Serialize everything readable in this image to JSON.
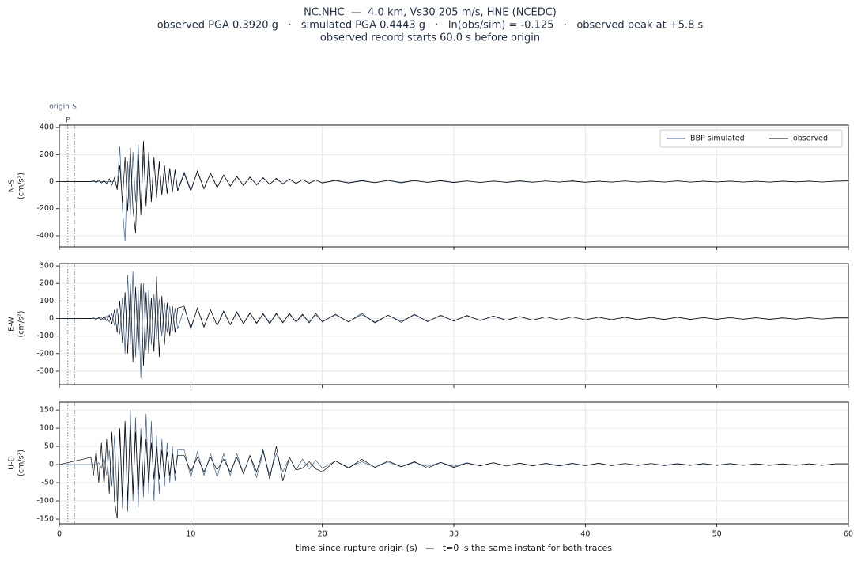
{
  "suptitle": [
    "NC.NHC  —  4.0 km, Vs30 205 m/s, HNE (NCEDC)",
    "observed PGA 0.3920 g   ·   simulated PGA 0.4443 g   ·   ln(obs/sim) = -0.125   ·   observed peak at +5.8 s",
    "observed record starts 60.0 s before origin"
  ],
  "xlabel": "time since rupture origin (s)   —   t=0 is the same instant for both traces",
  "chart_data": [
    {
      "type": "line",
      "ylabel": [
        "N-S",
        "(cm/s²)"
      ],
      "legend": "upper right",
      "grid": true,
      "markers": [
        {
          "label": "origin",
          "x": 0
        },
        {
          "label": "P",
          "x": 0.65
        },
        {
          "label": "S",
          "x": 1.15
        }
      ],
      "xlim": [
        0,
        60
      ],
      "xticks": [
        0,
        10,
        20,
        30,
        40,
        50,
        60
      ],
      "ylim": [
        -482,
        418
      ],
      "yticks": [
        -400,
        -200,
        0,
        200,
        400
      ],
      "x": [
        0,
        2.4,
        2.6,
        2.8,
        3.0,
        3.2,
        3.4,
        3.6,
        3.8,
        4.0,
        4.2,
        4.4,
        4.6,
        4.8,
        5.0,
        5.2,
        5.4,
        5.6,
        5.8,
        6.0,
        6.2,
        6.4,
        6.6,
        6.8,
        7.0,
        7.2,
        7.4,
        7.6,
        7.8,
        8.0,
        8.2,
        8.4,
        8.6,
        8.8,
        9.0,
        9.5,
        10,
        10.5,
        11,
        11.5,
        12,
        12.5,
        13,
        13.5,
        14,
        14.5,
        15,
        15.5,
        16,
        16.5,
        17,
        17.5,
        18,
        18.5,
        19,
        19.5,
        20,
        21,
        22,
        23,
        24,
        25,
        26,
        27,
        28,
        29,
        30,
        31,
        32,
        33,
        34,
        35,
        36,
        37,
        38,
        39,
        40,
        41,
        42,
        43,
        44,
        45,
        46,
        47,
        48,
        49,
        50,
        51,
        52,
        53,
        54,
        55,
        56,
        57,
        58,
        59,
        60
      ],
      "series": [
        {
          "name": "BBP simulated",
          "color": "#3b6192",
          "values": [
            0,
            0,
            0,
            0,
            0,
            0,
            0,
            0,
            0,
            0,
            5,
            -40,
            260,
            -200,
            -436,
            150,
            -250,
            220,
            -150,
            280,
            -220,
            200,
            -160,
            180,
            -140,
            170,
            -110,
            130,
            -90,
            110,
            -80,
            90,
            -70,
            80,
            -60,
            70,
            -60,
            70,
            -55,
            65,
            -40,
            45,
            -30,
            35,
            -25,
            30,
            -20,
            25,
            -18,
            20,
            -15,
            18,
            -12,
            14,
            -10,
            12,
            -8,
            10,
            -8,
            9,
            -7,
            8,
            -10,
            7,
            -6,
            8,
            -5,
            6,
            -7,
            5,
            -6,
            4,
            -5,
            5,
            -4,
            6,
            -4,
            4,
            -3,
            5,
            -4,
            3,
            -4,
            6,
            -3,
            4,
            -2,
            3,
            -4,
            3,
            -3,
            4,
            -2,
            3,
            -3,
            4,
            6
          ]
        },
        {
          "name": "observed",
          "color": "#000000",
          "values": [
            0,
            0,
            10,
            -8,
            12,
            -10,
            8,
            -15,
            20,
            -25,
            30,
            -60,
            120,
            -150,
            180,
            -220,
            250,
            -200,
            -380,
            200,
            -250,
            300,
            -180,
            220,
            -150,
            180,
            -120,
            150,
            -100,
            120,
            -90,
            100,
            -80,
            90,
            -70,
            60,
            -70,
            80,
            -50,
            60,
            -45,
            50,
            -35,
            40,
            -30,
            35,
            -25,
            30,
            -20,
            25,
            -18,
            20,
            -15,
            15,
            -12,
            12,
            -10,
            8,
            -10,
            6,
            -8,
            10,
            -6,
            8,
            -5,
            6,
            -7,
            5,
            -6,
            4,
            -5,
            6,
            -4,
            5,
            -3,
            4,
            -5,
            3,
            -4,
            5,
            -3,
            4,
            -3,
            5,
            -4,
            3,
            -3,
            4,
            -3,
            3,
            -4,
            3,
            -2,
            4,
            -3,
            3,
            5
          ]
        }
      ]
    },
    {
      "type": "line",
      "ylabel": [
        "E-W",
        "(cm/s²)"
      ],
      "grid": true,
      "xlim": [
        0,
        60
      ],
      "xticks": [
        0,
        10,
        20,
        30,
        40,
        50,
        60
      ],
      "ylim": [
        -377,
        314
      ],
      "yticks": [
        -300,
        -200,
        -100,
        0,
        100,
        200,
        300
      ],
      "x": [
        0,
        2.4,
        2.6,
        2.8,
        3.0,
        3.2,
        3.4,
        3.6,
        3.8,
        4.0,
        4.2,
        4.4,
        4.6,
        4.8,
        5.0,
        5.2,
        5.4,
        5.6,
        5.8,
        6.0,
        6.2,
        6.4,
        6.6,
        6.8,
        7.0,
        7.2,
        7.4,
        7.6,
        7.8,
        8.0,
        8.2,
        8.4,
        8.6,
        8.8,
        9.0,
        9.5,
        10,
        10.5,
        11,
        11.5,
        12,
        12.5,
        13,
        13.5,
        14,
        14.5,
        15,
        15.5,
        16,
        16.5,
        17,
        17.5,
        18,
        18.5,
        19,
        19.5,
        20,
        21,
        22,
        23,
        24,
        25,
        26,
        27,
        28,
        29,
        30,
        31,
        32,
        33,
        34,
        35,
        36,
        37,
        38,
        39,
        40,
        41,
        42,
        43,
        44,
        45,
        46,
        47,
        48,
        49,
        50,
        51,
        52,
        53,
        54,
        55,
        56,
        57,
        58,
        59,
        60
      ],
      "series": [
        {
          "name": "BBP simulated",
          "color": "#3b6192",
          "values": [
            0,
            0,
            0,
            0,
            0,
            5,
            -10,
            15,
            -20,
            30,
            -40,
            60,
            -90,
            120,
            -200,
            250,
            -150,
            270,
            -220,
            160,
            -340,
            200,
            -180,
            160,
            -150,
            140,
            -120,
            110,
            -100,
            90,
            -80,
            70,
            -70,
            60,
            -60,
            60,
            -50,
            55,
            -45,
            50,
            -40,
            45,
            -35,
            40,
            -30,
            35,
            -30,
            30,
            -25,
            25,
            -20,
            25,
            -20,
            20,
            -18,
            20,
            -15,
            20,
            -18,
            22,
            -20,
            18,
            -15,
            20,
            -15,
            15,
            -12,
            15,
            -10,
            12,
            -10,
            10,
            -8,
            10,
            -8,
            9,
            -7,
            8,
            -6,
            7,
            -6,
            6,
            -5,
            7,
            -5,
            5,
            -4,
            5,
            -4,
            4,
            -4,
            3,
            -3,
            4,
            -3,
            3,
            3
          ]
        },
        {
          "name": "observed",
          "color": "#000000",
          "values": [
            0,
            0,
            4,
            -5,
            6,
            -8,
            10,
            -12,
            20,
            -30,
            50,
            -80,
            100,
            -140,
            150,
            -200,
            200,
            -250,
            180,
            -180,
            200,
            -270,
            150,
            -200,
            120,
            -190,
            240,
            -220,
            130,
            -150,
            90,
            -100,
            70,
            -80,
            60,
            70,
            -60,
            60,
            -50,
            50,
            -40,
            40,
            -35,
            35,
            -30,
            30,
            -25,
            25,
            -30,
            30,
            -25,
            30,
            -20,
            25,
            -25,
            30,
            -20,
            25,
            -20,
            30,
            -25,
            20,
            -22,
            25,
            -18,
            20,
            -15,
            18,
            -12,
            15,
            -10,
            12,
            -10,
            10,
            -8,
            10,
            -8,
            8,
            -7,
            8,
            -6,
            7,
            -6,
            8,
            -5,
            6,
            -5,
            6,
            -4,
            5,
            -5,
            4,
            -4,
            5,
            -3,
            4,
            4
          ]
        }
      ]
    },
    {
      "type": "line",
      "ylabel": [
        "U-D",
        "(cm/s²)"
      ],
      "grid": true,
      "xlim": [
        0,
        60
      ],
      "xticks": [
        0,
        10,
        20,
        30,
        40,
        50,
        60
      ],
      "ylim": [
        -163,
        172
      ],
      "yticks": [
        -150,
        -100,
        -50,
        0,
        50,
        100,
        150
      ],
      "x": [
        0,
        2.4,
        2.6,
        2.8,
        3.0,
        3.2,
        3.4,
        3.6,
        3.8,
        4.0,
        4.2,
        4.4,
        4.6,
        4.8,
        5.0,
        5.2,
        5.4,
        5.6,
        5.8,
        6.0,
        6.2,
        6.4,
        6.6,
        6.8,
        7.0,
        7.2,
        7.4,
        7.6,
        7.8,
        8.0,
        8.2,
        8.4,
        8.6,
        8.8,
        9.0,
        9.5,
        10,
        10.5,
        11,
        11.5,
        12,
        12.5,
        13,
        13.5,
        14,
        14.5,
        15,
        15.5,
        16,
        16.5,
        17,
        17.5,
        18,
        18.5,
        19,
        19.5,
        20,
        21,
        22,
        23,
        24,
        25,
        26,
        27,
        28,
        29,
        30,
        31,
        32,
        33,
        34,
        35,
        36,
        37,
        38,
        39,
        40,
        41,
        42,
        43,
        44,
        45,
        46,
        47,
        48,
        49,
        50,
        51,
        52,
        53,
        54,
        55,
        56,
        57,
        58,
        59,
        60
      ],
      "series": [
        {
          "name": "BBP simulated",
          "color": "#3b6192",
          "values": [
            0,
            0,
            0,
            0,
            5,
            -10,
            20,
            -30,
            40,
            -60,
            80,
            -100,
            90,
            -120,
            110,
            -130,
            150,
            -100,
            130,
            -120,
            100,
            -90,
            140,
            -80,
            120,
            -100,
            80,
            -80,
            70,
            -60,
            60,
            -50,
            50,
            -45,
            40,
            40,
            -35,
            35,
            -30,
            30,
            -35,
            30,
            -30,
            30,
            -25,
            25,
            -35,
            35,
            -30,
            30,
            -20,
            20,
            -15,
            15,
            -12,
            12,
            -10,
            10,
            -8,
            8,
            -7,
            7,
            -6,
            6,
            -5,
            6,
            -5,
            5,
            -4,
            5,
            -4,
            4,
            -4,
            4,
            -3,
            4,
            -3,
            3,
            -3,
            3,
            -3,
            3,
            -2,
            3,
            -2,
            2,
            -2,
            2,
            -2,
            2,
            -2,
            2,
            -2,
            2,
            -2,
            2,
            2
          ]
        },
        {
          "name": "observed",
          "color": "#000000",
          "values": [
            0,
            20,
            -30,
            40,
            -50,
            60,
            -60,
            70,
            -80,
            90,
            -100,
            -148,
            100,
            -90,
            120,
            -100,
            110,
            -80,
            90,
            -70,
            80,
            -60,
            70,
            -50,
            60,
            -40,
            50,
            -40,
            40,
            -35,
            35,
            -30,
            30,
            -25,
            25,
            25,
            -20,
            20,
            -20,
            20,
            -15,
            15,
            -20,
            20,
            -25,
            25,
            -20,
            40,
            -40,
            50,
            -45,
            20,
            -15,
            -10,
            8,
            -12,
            -20,
            10,
            -10,
            15,
            -8,
            10,
            -6,
            8,
            -10,
            6,
            -8,
            4,
            -3,
            5,
            -4,
            4,
            -3,
            3,
            -4,
            3,
            -3,
            4,
            -3,
            3,
            -2,
            3,
            -3,
            2,
            -2,
            3,
            -2,
            3,
            -2,
            2,
            -2,
            2,
            -2,
            2,
            -2,
            2,
            2
          ]
        }
      ]
    }
  ]
}
